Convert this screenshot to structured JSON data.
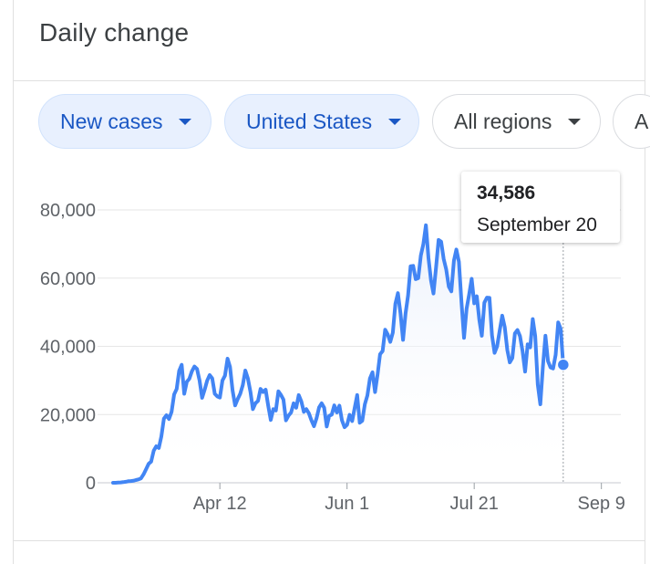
{
  "header": {
    "title": "Daily change"
  },
  "filters": [
    {
      "label": "New cases",
      "style": "primary"
    },
    {
      "label": "United States",
      "style": "primary"
    },
    {
      "label": "All regions",
      "style": "plain"
    },
    {
      "label": "A",
      "style": "plain"
    }
  ],
  "tooltip": {
    "value": "34,586",
    "date": "September 20"
  },
  "colors": {
    "line": "#4285f4",
    "fill_top": "#e8effb",
    "grid": "#e6e6e6",
    "axis_text": "#5f6368"
  },
  "chart_data": {
    "type": "area",
    "title": "Daily change",
    "series_name": "New cases",
    "region": "United States",
    "xlabel": "",
    "ylabel": "",
    "ylim": [
      0,
      80000
    ],
    "y_ticks": [
      {
        "value": 0,
        "label": "0"
      },
      {
        "value": 20000,
        "label": "20,000"
      },
      {
        "value": 40000,
        "label": "40,000"
      },
      {
        "value": 60000,
        "label": "60,000"
      },
      {
        "value": 80000,
        "label": "80,000"
      }
    ],
    "x_start": "2020-03-01",
    "x_ticks": [
      {
        "day": 42,
        "label": "Apr 12"
      },
      {
        "day": 92,
        "label": "Jun 1"
      },
      {
        "day": 142,
        "label": "Jul 21"
      },
      {
        "day": 192,
        "label": "Sep 9"
      }
    ],
    "values": [
      0,
      0,
      50,
      100,
      200,
      300,
      450,
      500,
      600,
      800,
      1000,
      1300,
      2500,
      4000,
      5600,
      6200,
      9400,
      10700,
      10200,
      13600,
      18800,
      19800,
      18700,
      20800,
      25900,
      27500,
      32800,
      34600,
      26100,
      29600,
      30500,
      32700,
      34100,
      33400,
      30000,
      24900,
      27200,
      29900,
      31600,
      30600,
      26100,
      25300,
      25000,
      30000,
      31400,
      36400,
      34000,
      27100,
      22700,
      24500,
      26100,
      28600,
      32900,
      30600,
      26700,
      21600,
      23300,
      24000,
      27500,
      26600,
      27300,
      22600,
      18400,
      21600,
      21200,
      26800,
      25800,
      24400,
      18300,
      19700,
      20600,
      23300,
      22000,
      25700,
      23900,
      20800,
      21600,
      20400,
      18300,
      16600,
      18900,
      22100,
      23300,
      22000,
      16500,
      19600,
      20000,
      22700,
      20600,
      22600,
      18300,
      16300,
      17000,
      19900,
      18100,
      22000,
      25700,
      17600,
      18200,
      23000,
      25600,
      30600,
      32400,
      26600,
      31800,
      37700,
      38600,
      44900,
      43500,
      41300,
      44000,
      52500,
      55600,
      49700,
      41900,
      49700,
      54900,
      63500,
      63600,
      59700,
      60000,
      66600,
      70000,
      75500,
      65900,
      59300,
      55500,
      63100,
      71200,
      70700,
      65600,
      62500,
      57500,
      56100,
      65100,
      68400,
      64800,
      53000,
      42500,
      51000,
      55200,
      59800,
      52600,
      54700,
      47700,
      43100,
      52800,
      54300,
      54200,
      43200,
      38100,
      40000,
      44600,
      49000,
      45600,
      38900,
      35300,
      36600,
      43800,
      44800,
      43000,
      38600,
      32600,
      40600,
      39700,
      48000,
      43000,
      28800,
      23000,
      34000,
      43100,
      35700,
      33800,
      33500,
      37500,
      47000,
      45200,
      34586
    ]
  }
}
